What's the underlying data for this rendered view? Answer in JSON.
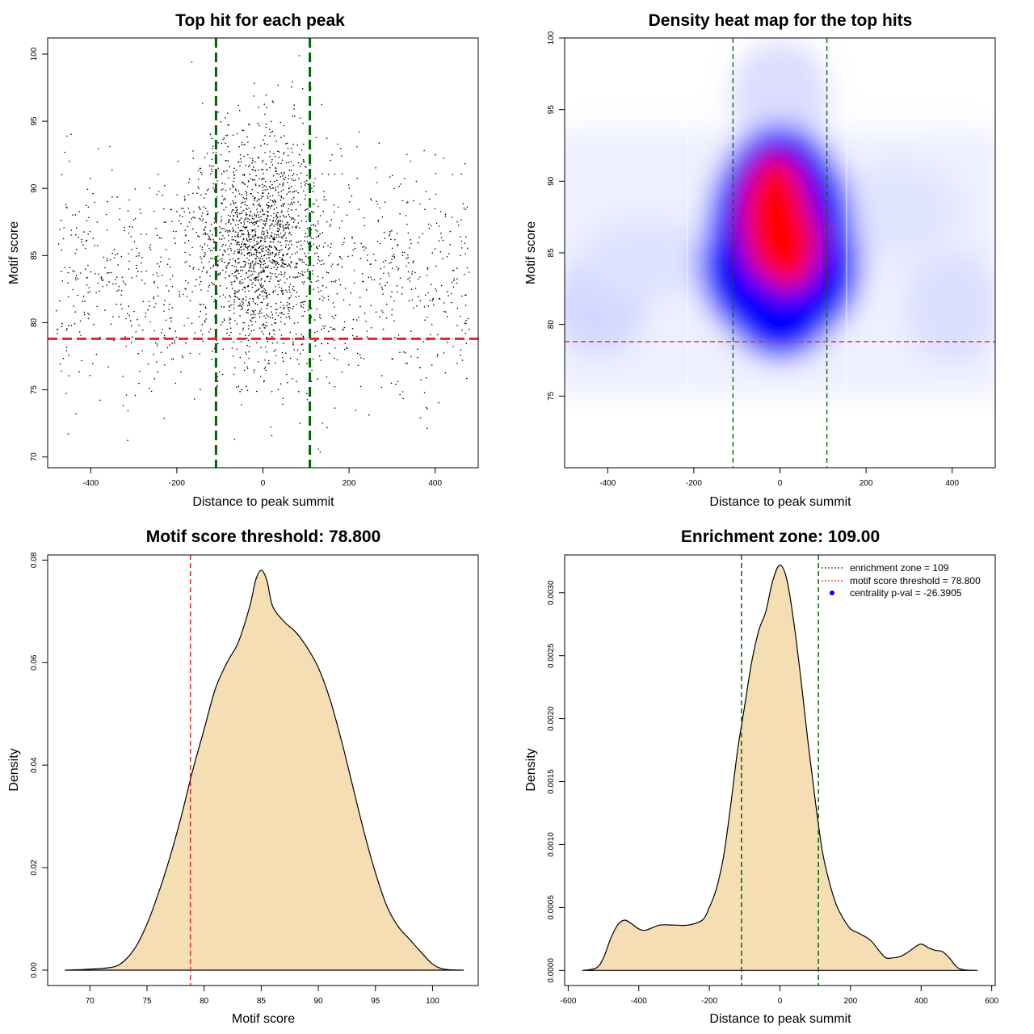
{
  "chart_data": [
    {
      "type": "scatter",
      "title": "Top hit for each peak",
      "xlabel": "Distance to peak summit",
      "ylabel": "Motif score",
      "xlim": [
        -500,
        500
      ],
      "ylim": [
        69.2,
        101.2
      ],
      "xticks": [
        -400,
        -200,
        0,
        200,
        400
      ],
      "yticks": [
        70,
        75,
        80,
        85,
        90,
        95,
        100
      ],
      "vlines": [
        -109,
        109
      ],
      "hline": 78.8,
      "n_points": 2600,
      "seed": 7,
      "colors": {
        "points": "#000000",
        "zone": "#006400",
        "threshold": "#e0262b"
      }
    },
    {
      "type": "heatmap",
      "title": "Density heat map for the top hits",
      "xlabel": "Distance to peak summit",
      "ylabel": "Motif score",
      "xlim": [
        -500,
        500
      ],
      "ylim": [
        70,
        100
      ],
      "xticks": [
        -400,
        -200,
        0,
        200,
        400
      ],
      "yticks": [
        75,
        80,
        85,
        90,
        95,
        100
      ],
      "vlines": [
        -109,
        109
      ],
      "hline": 78.8,
      "colors": {
        "low": "#ffffff",
        "mid": "#0000ff",
        "high": "#ff0000",
        "zone": "#006400",
        "threshold": "#e0262b"
      }
    },
    {
      "type": "area",
      "title": "Motif score threshold: 78.800",
      "xlabel": "Motif score",
      "ylabel": "Density",
      "xlim": [
        66.3,
        104
      ],
      "ylim": [
        -0.003,
        0.081
      ],
      "xticks": [
        70,
        75,
        80,
        85,
        90,
        95,
        100
      ],
      "yticks": [
        0.0,
        0.02,
        0.04,
        0.06,
        0.08
      ],
      "ytick_labels": [
        "0.00",
        "0.02",
        "0.04",
        "0.06",
        "0.08"
      ],
      "x": [
        67.8,
        70,
        72,
        73,
        74,
        75,
        76,
        77,
        78,
        79,
        80,
        81,
        82,
        83,
        84,
        84.5,
        85,
        85.5,
        86,
        87,
        88,
        89,
        90,
        91,
        92,
        93,
        94,
        95,
        96,
        97,
        98,
        99,
        100,
        101,
        102.7
      ],
      "values": [
        0.0,
        0.0002,
        0.0006,
        0.0018,
        0.0045,
        0.009,
        0.015,
        0.022,
        0.03,
        0.039,
        0.047,
        0.055,
        0.06,
        0.064,
        0.071,
        0.076,
        0.078,
        0.076,
        0.071,
        0.068,
        0.066,
        0.063,
        0.059,
        0.053,
        0.045,
        0.036,
        0.027,
        0.019,
        0.0125,
        0.0085,
        0.006,
        0.0035,
        0.0012,
        0.0002,
        0.0
      ],
      "vline": 78.8,
      "colors": {
        "fill": "#f5deb3",
        "line": "#000000",
        "threshold": "#e0262b"
      }
    },
    {
      "type": "area",
      "title": "Enrichment zone: 109.00",
      "xlabel": "Distance to peak summit",
      "ylabel": "Density",
      "xlim": [
        -610,
        610
      ],
      "ylim": [
        -0.00012,
        0.0033
      ],
      "xticks": [
        -600,
        -400,
        -200,
        0,
        200,
        400,
        600
      ],
      "yticks": [
        0.0,
        0.0005,
        0.001,
        0.0015,
        0.002,
        0.0025,
        0.003
      ],
      "ytick_labels": [
        "0.0000",
        "0.0005",
        "0.0010",
        "0.0015",
        "0.0020",
        "0.0025",
        "0.0030"
      ],
      "x": [
        -560,
        -520,
        -500,
        -480,
        -460,
        -440,
        -420,
        -400,
        -380,
        -340,
        -300,
        -260,
        -220,
        -200,
        -180,
        -160,
        -140,
        -120,
        -100,
        -80,
        -60,
        -40,
        -20,
        0,
        20,
        40,
        60,
        80,
        100,
        120,
        140,
        160,
        180,
        200,
        220,
        240,
        260,
        280,
        300,
        320,
        340,
        360,
        380,
        400,
        420,
        440,
        460,
        480,
        500,
        520,
        560
      ],
      "values": [
        0.0,
        2e-05,
        0.0001,
        0.00025,
        0.00036,
        0.0004,
        0.00037,
        0.00033,
        0.00032,
        0.00036,
        0.00036,
        0.00036,
        0.0004,
        0.0005,
        0.00065,
        0.0009,
        0.0013,
        0.00175,
        0.0021,
        0.00245,
        0.0027,
        0.00285,
        0.0031,
        0.00322,
        0.0031,
        0.00275,
        0.0023,
        0.0018,
        0.00135,
        0.00095,
        0.0007,
        0.00052,
        0.00041,
        0.00033,
        0.0003,
        0.00027,
        0.00023,
        0.00016,
        0.0001,
        0.0001,
        0.00011,
        0.00014,
        0.00018,
        0.00021,
        0.00018,
        0.00016,
        0.00015,
        0.0001,
        3e-05,
        5e-06,
        0.0
      ],
      "vlines": [
        -109,
        109
      ],
      "legend": [
        {
          "label": "enrichment zone = 109",
          "style": "dotted",
          "color": "#006400"
        },
        {
          "label": "motif score threshold = 78.800",
          "style": "dotted",
          "color": "#e0262b"
        },
        {
          "label": "centrality p-val = -26.3905",
          "style": "point",
          "color": "#0000ff"
        }
      ],
      "legend_position": "top-right",
      "colors": {
        "fill": "#f5deb3",
        "line": "#000000",
        "zone": "#006400"
      }
    }
  ]
}
